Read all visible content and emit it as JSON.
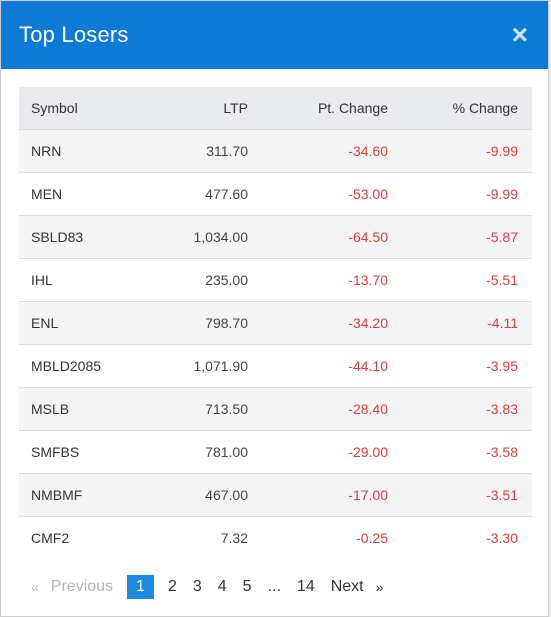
{
  "modal": {
    "title": "Top Losers",
    "close_label": "×"
  },
  "table": {
    "headers": {
      "symbol": "Symbol",
      "ltp": "LTP",
      "pt_change": "Pt. Change",
      "pct_change": "% Change"
    },
    "rows": [
      {
        "symbol": "NRN",
        "ltp": "311.70",
        "pt": "-34.60",
        "pct": "-9.99"
      },
      {
        "symbol": "MEN",
        "ltp": "477.60",
        "pt": "-53.00",
        "pct": "-9.99"
      },
      {
        "symbol": "SBLD83",
        "ltp": "1,034.00",
        "pt": "-64.50",
        "pct": "-5.87"
      },
      {
        "symbol": "IHL",
        "ltp": "235.00",
        "pt": "-13.70",
        "pct": "-5.51"
      },
      {
        "symbol": "ENL",
        "ltp": "798.70",
        "pt": "-34.20",
        "pct": "-4.11"
      },
      {
        "symbol": "MBLD2085",
        "ltp": "1,071.90",
        "pt": "-44.10",
        "pct": "-3.95"
      },
      {
        "symbol": "MSLB",
        "ltp": "713.50",
        "pt": "-28.40",
        "pct": "-3.83"
      },
      {
        "symbol": "SMFBS",
        "ltp": "781.00",
        "pt": "-29.00",
        "pct": "-3.58"
      },
      {
        "symbol": "NMBMF",
        "ltp": "467.00",
        "pt": "-17.00",
        "pct": "-3.51"
      },
      {
        "symbol": "CMF2",
        "ltp": "7.32",
        "pt": "-0.25",
        "pct": "-3.30"
      }
    ]
  },
  "pagination": {
    "prev_arrow": "«",
    "previous": "Previous",
    "pages": [
      "1",
      "2",
      "3",
      "4",
      "5"
    ],
    "ellipsis": "...",
    "last_page": "14",
    "next": "Next",
    "next_arrow": "»",
    "current": "1"
  },
  "colors": {
    "header_bg": "#0d7bd6",
    "negative": "#e03a3a",
    "active_page": "#1a8be0"
  }
}
